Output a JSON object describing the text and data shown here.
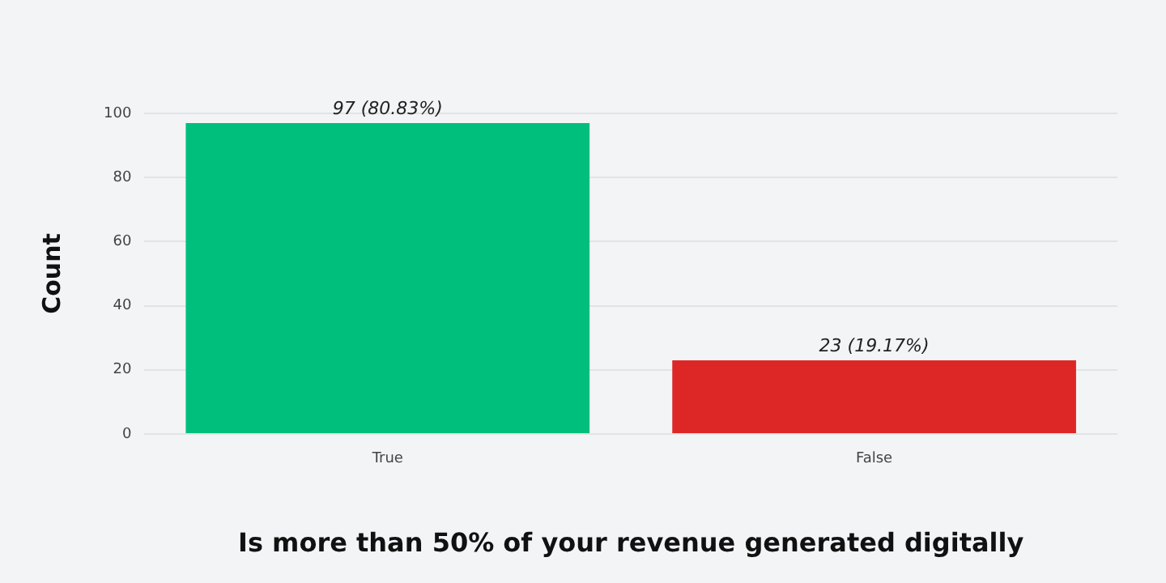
{
  "chart_data": {
    "type": "bar",
    "xlabel": "Is more than 50% of your revenue generated digitally",
    "ylabel": "Count",
    "categories": [
      "True",
      "False"
    ],
    "values": [
      97,
      23
    ],
    "colors": [
      "#00bf7d",
      "#dd2727"
    ],
    "value_labels": [
      "97 (80.83%)",
      "23 (19.17%)"
    ],
    "ylim": [
      0,
      100
    ],
    "yticks": [
      0,
      20,
      40,
      60,
      80,
      100
    ],
    "grid": "y",
    "legend": false
  }
}
